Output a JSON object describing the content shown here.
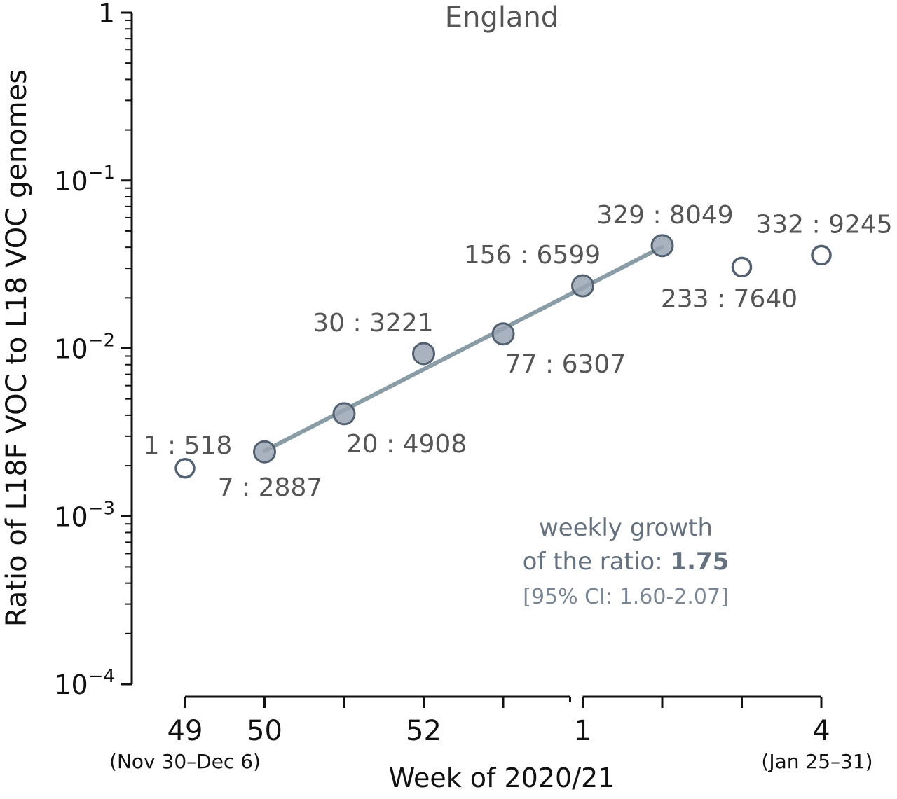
{
  "chart_data": {
    "type": "scatter",
    "title": "England",
    "xlabel": "Week of 2020/21",
    "ylabel": "Ratio of L18F VOC to L18 VOC genomes",
    "yscale": "log",
    "ylim": [
      0.0001,
      1
    ],
    "y_ticks": [
      {
        "value": 1,
        "base": "1",
        "exp": ""
      },
      {
        "value": 0.1,
        "base": "10",
        "exp": "−1"
      },
      {
        "value": 0.01,
        "base": "10",
        "exp": "−2"
      },
      {
        "value": 0.001,
        "base": "10",
        "exp": "−3"
      },
      {
        "value": 0.0001,
        "base": "10",
        "exp": "−4"
      }
    ],
    "x_ticks": [
      {
        "week_index": 0,
        "label": "49",
        "sublabel": "(Nov 30–Dec 6)"
      },
      {
        "week_index": 1,
        "label": "50",
        "sublabel": ""
      },
      {
        "week_index": 2,
        "label": "",
        "sublabel": ""
      },
      {
        "week_index": 3,
        "label": "52",
        "sublabel": ""
      },
      {
        "week_index": 4,
        "label": "",
        "sublabel": ""
      },
      {
        "week_index": 5,
        "label": "1",
        "sublabel": ""
      },
      {
        "week_index": 6,
        "label": "",
        "sublabel": ""
      },
      {
        "week_index": 7,
        "label": "",
        "sublabel": ""
      },
      {
        "week_index": 8,
        "label": "4",
        "sublabel": "(Jan 25–31)"
      }
    ],
    "points": [
      {
        "week": "49",
        "week_index": 0,
        "ratio": 0.00193,
        "label": "1 : 518",
        "fitted": false,
        "label_pos": "above-right"
      },
      {
        "week": "50",
        "week_index": 1,
        "ratio": 0.00242,
        "label": "7 : 2887",
        "fitted": true,
        "label_pos": "below"
      },
      {
        "week": "51",
        "week_index": 2,
        "ratio": 0.00408,
        "label": "20 : 4908",
        "fitted": true,
        "label_pos": "below-right"
      },
      {
        "week": "52",
        "week_index": 3,
        "ratio": 0.00931,
        "label": "30 : 3221",
        "fitted": true,
        "label_pos": "above-left"
      },
      {
        "week": "53",
        "week_index": 4,
        "ratio": 0.0122,
        "label": "77 : 6307",
        "fitted": true,
        "label_pos": "below-right"
      },
      {
        "week": "1",
        "week_index": 5,
        "ratio": 0.0236,
        "label": "156 : 6599",
        "fitted": true,
        "label_pos": "above-left"
      },
      {
        "week": "2",
        "week_index": 6,
        "ratio": 0.0409,
        "label": "329 : 8049",
        "fitted": true,
        "label_pos": "above"
      },
      {
        "week": "3",
        "week_index": 7,
        "ratio": 0.0305,
        "label": "233 : 7640",
        "fitted": false,
        "label_pos": "below-left"
      },
      {
        "week": "4",
        "week_index": 8,
        "ratio": 0.0359,
        "label": "332 : 9245",
        "fitted": false,
        "label_pos": "above"
      }
    ],
    "fit_line": {
      "start_week_index": 1,
      "end_week_index": 6,
      "start_ratio": 0.00245,
      "end_ratio": 0.0402
    },
    "annotation": {
      "line1": "weekly growth",
      "line2_prefix": "of the ratio: ",
      "line2_value": "1.75",
      "line3": "[95% CI: 1.60-2.07]"
    },
    "colors": {
      "filled_marker": "#9aa5b4",
      "marker_edge": "#536070",
      "fit_line": "#8a9da7",
      "axis": "#111111"
    }
  }
}
